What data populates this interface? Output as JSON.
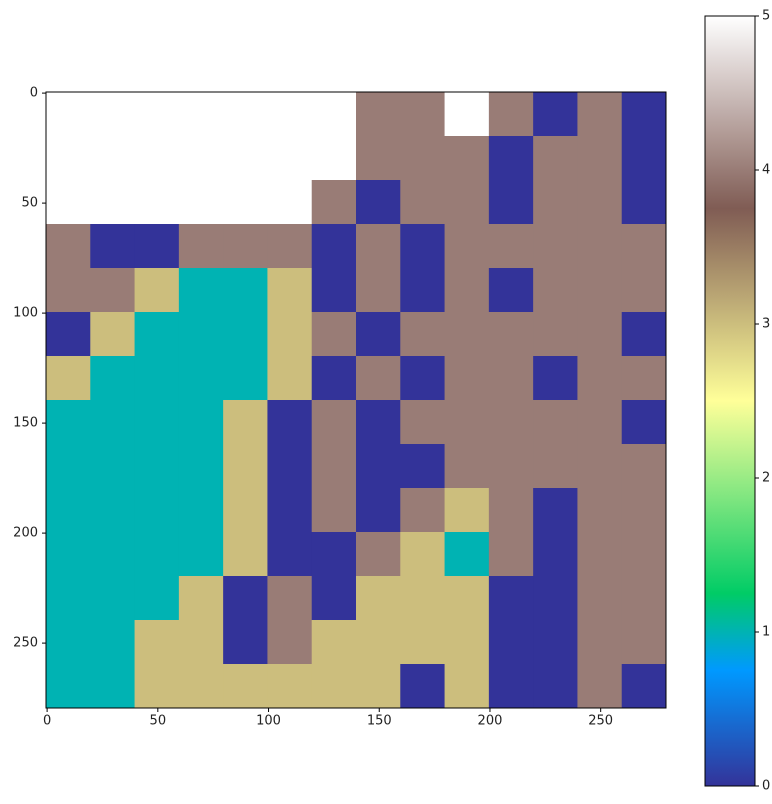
{
  "chart_data": {
    "type": "heatmap",
    "colormap": "terrain",
    "xlim": [
      -0.5,
      279.5
    ],
    "ylim": [
      279.5,
      -0.5
    ],
    "xticks": [
      0,
      50,
      100,
      150,
      200,
      250
    ],
    "yticks": [
      0,
      50,
      100,
      150,
      200,
      250
    ],
    "zlim": [
      0,
      5
    ],
    "colorbar_ticks": [
      0,
      1,
      2,
      3,
      4,
      5
    ],
    "z": [
      [
        5,
        5,
        5,
        5,
        5,
        5,
        5,
        4,
        4,
        5,
        4,
        0,
        4,
        0
      ],
      [
        5,
        5,
        5,
        5,
        5,
        5,
        5,
        4,
        4,
        4,
        0,
        4,
        4,
        0
      ],
      [
        5,
        5,
        5,
        5,
        5,
        5,
        4,
        0,
        4,
        4,
        0,
        4,
        4,
        0
      ],
      [
        4,
        0,
        0,
        4,
        4,
        4,
        0,
        4,
        0,
        4,
        4,
        4,
        4,
        4
      ],
      [
        4,
        4,
        3,
        1,
        1,
        3,
        0,
        4,
        0,
        4,
        0,
        4,
        4,
        4
      ],
      [
        0,
        3,
        1,
        1,
        1,
        3,
        4,
        0,
        4,
        4,
        4,
        4,
        4,
        0
      ],
      [
        3,
        1,
        1,
        1,
        1,
        3,
        0,
        4,
        0,
        4,
        4,
        0,
        4,
        4
      ],
      [
        1,
        1,
        1,
        1,
        3,
        0,
        4,
        0,
        4,
        4,
        4,
        4,
        4,
        0
      ],
      [
        1,
        1,
        1,
        1,
        3,
        0,
        4,
        0,
        0,
        4,
        4,
        4,
        4,
        4
      ],
      [
        1,
        1,
        1,
        1,
        3,
        0,
        4,
        0,
        4,
        3,
        4,
        0,
        4,
        4
      ],
      [
        1,
        1,
        1,
        1,
        3,
        0,
        0,
        4,
        3,
        1,
        4,
        0,
        4,
        4
      ],
      [
        1,
        1,
        1,
        3,
        0,
        4,
        0,
        3,
        3,
        3,
        0,
        0,
        4,
        4
      ],
      [
        1,
        1,
        3,
        3,
        0,
        4,
        3,
        3,
        3,
        3,
        0,
        0,
        4,
        4
      ],
      [
        1,
        1,
        3,
        3,
        3,
        3,
        3,
        3,
        0,
        3,
        0,
        0,
        4,
        0
      ]
    ]
  }
}
